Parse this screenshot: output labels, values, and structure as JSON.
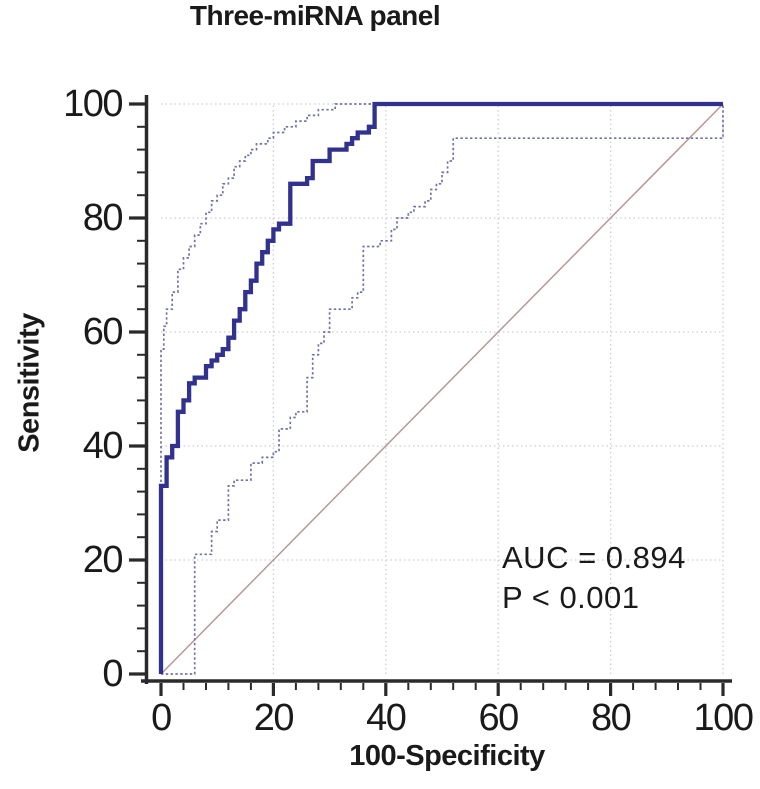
{
  "title": "Three-miRNA panel",
  "annotation": {
    "line1": "AUC = 0.894",
    "line2": "P < 0.001"
  },
  "axes": {
    "x_label": "100-Specificity",
    "y_label": "Sensitivity",
    "x_ticks": [
      0,
      20,
      40,
      60,
      80,
      100
    ],
    "y_ticks": [
      0,
      20,
      40,
      60,
      80,
      100
    ],
    "minor_tick_step": 4,
    "grid": true
  },
  "colors": {
    "roc": "#31318f",
    "ci": "#7272aa",
    "diagonal": "#b79898",
    "grid": "#ccccdc",
    "axis": "#2a2a2a",
    "text": "#1a1a1a"
  },
  "chart_data": {
    "type": "line",
    "title": "Three-miRNA panel",
    "xlabel": "100-Specificity",
    "ylabel": "Sensitivity",
    "xlim": [
      0,
      100
    ],
    "ylim": [
      0,
      100
    ],
    "grid": true,
    "legend": null,
    "annotations": [
      "AUC = 0.894",
      "P < 0.001"
    ],
    "series": [
      {
        "name": "ROC curve",
        "style": "solid",
        "points": [
          [
            0,
            0
          ],
          [
            0,
            33
          ],
          [
            1,
            33
          ],
          [
            1,
            38
          ],
          [
            2,
            38
          ],
          [
            2,
            40
          ],
          [
            3,
            40
          ],
          [
            3,
            46
          ],
          [
            4,
            46
          ],
          [
            4,
            48
          ],
          [
            5,
            48
          ],
          [
            5,
            51
          ],
          [
            6,
            51
          ],
          [
            6,
            52
          ],
          [
            8,
            52
          ],
          [
            8,
            54
          ],
          [
            9,
            54
          ],
          [
            9,
            55
          ],
          [
            10,
            55
          ],
          [
            10,
            56
          ],
          [
            11,
            56
          ],
          [
            11,
            57
          ],
          [
            12,
            57
          ],
          [
            12,
            59
          ],
          [
            13,
            59
          ],
          [
            13,
            62
          ],
          [
            14,
            62
          ],
          [
            14,
            64
          ],
          [
            15,
            64
          ],
          [
            15,
            67
          ],
          [
            16,
            67
          ],
          [
            16,
            69
          ],
          [
            17,
            69
          ],
          [
            17,
            72
          ],
          [
            18,
            72
          ],
          [
            18,
            74
          ],
          [
            19,
            74
          ],
          [
            19,
            76
          ],
          [
            20,
            76
          ],
          [
            20,
            78
          ],
          [
            21,
            78
          ],
          [
            21,
            79
          ],
          [
            23,
            79
          ],
          [
            23,
            86
          ],
          [
            26,
            86
          ],
          [
            26,
            87
          ],
          [
            27,
            87
          ],
          [
            27,
            90
          ],
          [
            30,
            90
          ],
          [
            30,
            92
          ],
          [
            33,
            92
          ],
          [
            33,
            93
          ],
          [
            34,
            93
          ],
          [
            34,
            94
          ],
          [
            35,
            94
          ],
          [
            35,
            95
          ],
          [
            37,
            95
          ],
          [
            37,
            96
          ],
          [
            38,
            96
          ],
          [
            38,
            100
          ],
          [
            100,
            100
          ]
        ]
      },
      {
        "name": "Upper 95% CI",
        "style": "dotted",
        "points": [
          [
            0,
            0
          ],
          [
            0,
            57
          ],
          [
            0.5,
            57
          ],
          [
            0.5,
            61
          ],
          [
            1,
            61
          ],
          [
            1,
            64
          ],
          [
            2,
            64
          ],
          [
            2,
            67
          ],
          [
            3,
            67
          ],
          [
            3,
            71
          ],
          [
            4,
            71
          ],
          [
            4,
            73
          ],
          [
            5,
            73
          ],
          [
            5,
            75
          ],
          [
            6,
            75
          ],
          [
            6,
            77
          ],
          [
            7,
            77
          ],
          [
            7,
            79
          ],
          [
            8,
            79
          ],
          [
            8,
            81
          ],
          [
            9,
            81
          ],
          [
            9,
            83
          ],
          [
            10,
            83
          ],
          [
            10,
            84
          ],
          [
            11,
            84
          ],
          [
            11,
            86
          ],
          [
            12,
            86
          ],
          [
            12,
            87
          ],
          [
            13,
            87
          ],
          [
            13,
            89
          ],
          [
            14,
            89
          ],
          [
            14,
            90
          ],
          [
            15,
            90
          ],
          [
            15,
            91
          ],
          [
            16,
            91
          ],
          [
            16,
            92
          ],
          [
            17,
            92
          ],
          [
            17,
            93
          ],
          [
            18,
            93
          ],
          [
            19,
            93
          ],
          [
            19,
            94
          ],
          [
            20,
            94
          ],
          [
            20,
            95
          ],
          [
            21,
            95
          ],
          [
            22,
            95
          ],
          [
            22,
            96
          ],
          [
            23,
            96
          ],
          [
            24,
            96
          ],
          [
            24,
            97
          ],
          [
            25,
            97
          ],
          [
            26,
            97
          ],
          [
            26,
            98
          ],
          [
            28,
            98
          ],
          [
            28,
            99
          ],
          [
            31,
            99
          ],
          [
            31,
            100
          ],
          [
            100,
            100
          ]
        ]
      },
      {
        "name": "Lower 95% CI",
        "style": "dotted",
        "points": [
          [
            0,
            0
          ],
          [
            6,
            0
          ],
          [
            6,
            21
          ],
          [
            9,
            21
          ],
          [
            9,
            25
          ],
          [
            10,
            25
          ],
          [
            10,
            27
          ],
          [
            12,
            27
          ],
          [
            12,
            33
          ],
          [
            13,
            33
          ],
          [
            13,
            34
          ],
          [
            16,
            34
          ],
          [
            16,
            37
          ],
          [
            18,
            37
          ],
          [
            18,
            38
          ],
          [
            20,
            38
          ],
          [
            20,
            39
          ],
          [
            21,
            39
          ],
          [
            21,
            43
          ],
          [
            23,
            43
          ],
          [
            23,
            45
          ],
          [
            24,
            45
          ],
          [
            24,
            46
          ],
          [
            26,
            46
          ],
          [
            26,
            52
          ],
          [
            27,
            52
          ],
          [
            27,
            56
          ],
          [
            28,
            56
          ],
          [
            28,
            58
          ],
          [
            29,
            58
          ],
          [
            29,
            60
          ],
          [
            30,
            60
          ],
          [
            30,
            64
          ],
          [
            34,
            64
          ],
          [
            34,
            66
          ],
          [
            35,
            66
          ],
          [
            35,
            67
          ],
          [
            36,
            67
          ],
          [
            36,
            75
          ],
          [
            39,
            75
          ],
          [
            39,
            76
          ],
          [
            41,
            76
          ],
          [
            41,
            78
          ],
          [
            42,
            78
          ],
          [
            42,
            80
          ],
          [
            44,
            80
          ],
          [
            44,
            81
          ],
          [
            45,
            81
          ],
          [
            45,
            82
          ],
          [
            47,
            82
          ],
          [
            47,
            83
          ],
          [
            48,
            83
          ],
          [
            48,
            85
          ],
          [
            49,
            85
          ],
          [
            49,
            86
          ],
          [
            50,
            86
          ],
          [
            50,
            88
          ],
          [
            51,
            88
          ],
          [
            51,
            90
          ],
          [
            52,
            90
          ],
          [
            52,
            94
          ],
          [
            100,
            94
          ],
          [
            100,
            100
          ]
        ]
      },
      {
        "name": "Reference diagonal",
        "style": "thin",
        "points": [
          [
            0,
            0
          ],
          [
            100,
            100
          ]
        ]
      }
    ]
  }
}
